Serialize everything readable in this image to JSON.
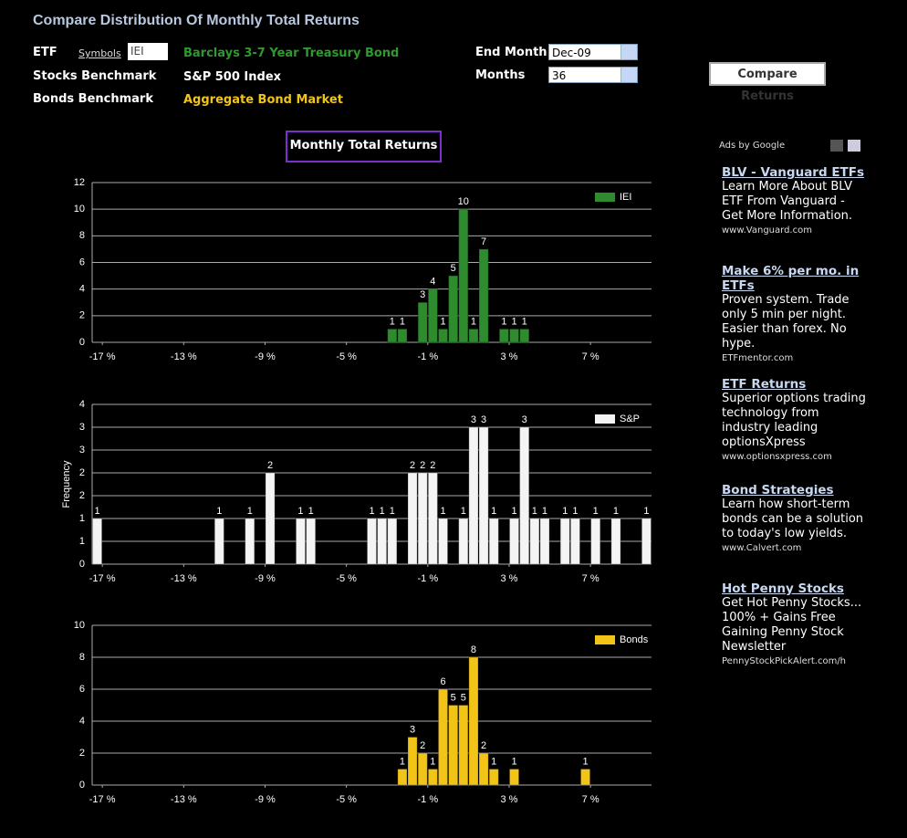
{
  "header": {
    "title": "Compare Distribution Of Monthly Total Returns"
  },
  "form": {
    "etf_label": "ETF",
    "symbols_link": "Symbols",
    "etf_value": "IEI",
    "etf_name": "Barclays 3-7 Year Treasury Bond",
    "stocks_label": "Stocks Benchmark",
    "stocks_name": "S&P 500 Index",
    "bonds_label": "Bonds Benchmark",
    "bonds_name": "Aggregate Bond Market",
    "end_month_label": "End Month",
    "end_month_value": "Dec-09",
    "months_label": "Months",
    "months_value": "36",
    "button": "Compare Returns"
  },
  "chart_header": "Monthly Total Returns",
  "ads": {
    "label": "Ads by Google",
    "items": [
      {
        "title": "BLV - Vanguard ETFs",
        "body": "Learn More About BLV ETF From Vanguard - Get More Information.",
        "url": "www.Vanguard.com"
      },
      {
        "title": "Make 6% per mo. in ETFs",
        "body": "Proven system. Trade only 5 min per night. Easier than forex. No hype.",
        "url": "ETFmentor.com"
      },
      {
        "title": "ETF Returns",
        "body": "Superior options trading technology from industry leading optionsXpress",
        "url": "www.optionsxpress.com"
      },
      {
        "title": "Bond Strategies",
        "body": "Learn how short-term bonds can be a solution to today's low yields.",
        "url": "www.Calvert.com"
      },
      {
        "title": "Hot Penny Stocks",
        "body": "Get Hot Penny Stocks... 100% + Gains Free Gaining Penny Stock Newsletter",
        "url": "PennyStockPickAlert.com/h"
      }
    ]
  },
  "chart_data": [
    {
      "type": "histogram",
      "legend": "upper right",
      "grid": true,
      "bins": [
        -3,
        -2.5,
        -2,
        -1.5,
        -1,
        -0.5,
        0,
        0.5,
        1,
        1.5,
        2,
        2.5,
        3,
        3.5,
        4
      ],
      "series": [
        {
          "name": "IEI",
          "color": "#2e8b2e",
          "values": [
            1,
            1,
            0,
            3,
            4,
            1,
            5,
            10,
            1,
            7,
            0,
            1,
            1,
            1
          ]
        }
      ],
      "xlim": [
        -17.5,
        10
      ],
      "xticks": [
        {
          "value": -17,
          "label": "-17 %"
        },
        {
          "value": -13,
          "label": "-13 %"
        },
        {
          "value": -9,
          "label": "-9 %"
        },
        {
          "value": -5,
          "label": "-5 %"
        },
        {
          "value": -1,
          "label": "-1 %"
        },
        {
          "value": 3,
          "label": "3 %"
        },
        {
          "value": 7,
          "label": "7 %"
        }
      ],
      "ylim": [
        0,
        12
      ],
      "yticks": [
        0,
        2,
        4,
        6,
        8,
        10,
        12
      ]
    },
    {
      "type": "histogram",
      "legend": "upper right",
      "grid": true,
      "y_label": "Frequency",
      "bins": [
        -17.5,
        -17,
        -16.5,
        -16,
        -15.5,
        -15,
        -14.5,
        -14,
        -13.5,
        -13,
        -12.5,
        -12,
        -11.5,
        -11,
        -10.5,
        -10,
        -9.5,
        -9,
        -8.5,
        -8,
        -7.5,
        -7,
        -6.5,
        -6,
        -5.5,
        -5,
        -4.5,
        -4,
        -3.5,
        -3,
        -2.5,
        -2,
        -1.5,
        -1,
        -0.5,
        0,
        0.5,
        1,
        1.5,
        2,
        2.5,
        3,
        3.5,
        4,
        4.5,
        5,
        5.5,
        6,
        6.5,
        7,
        7.5,
        8,
        8.5,
        9,
        9.5,
        10
      ],
      "series": [
        {
          "name": "S&P",
          "color": "#f4f4f4",
          "values": [
            1,
            0,
            0,
            0,
            0,
            0,
            0,
            0,
            0,
            0,
            0,
            0,
            1,
            0,
            0,
            1,
            0,
            2,
            0,
            0,
            1,
            1,
            0,
            0,
            0,
            0,
            0,
            1,
            1,
            1,
            0,
            2,
            2,
            2,
            1,
            0,
            1,
            3,
            3,
            1,
            0,
            1,
            3,
            1,
            1,
            0,
            1,
            1,
            0,
            1,
            0,
            1,
            0,
            0,
            1
          ]
        }
      ],
      "xlim": [
        -17.5,
        10
      ],
      "xticks": [
        {
          "value": -17,
          "label": "-17 %"
        },
        {
          "value": -13,
          "label": "-13 %"
        },
        {
          "value": -9,
          "label": "-9 %"
        },
        {
          "value": -5,
          "label": "-5 %"
        },
        {
          "value": -1,
          "label": "-1 %"
        },
        {
          "value": 3,
          "label": "3 %"
        },
        {
          "value": 7,
          "label": "7 %"
        }
      ],
      "ylim": [
        0,
        3.5
      ],
      "yticks": [
        0,
        {
          "value": 0.5,
          "label": "1"
        },
        1,
        {
          "value": 1.5,
          "label": "2"
        },
        2,
        {
          "value": 2.5,
          "label": "3"
        },
        3,
        {
          "value": 3.5,
          "label": "4"
        }
      ]
    },
    {
      "type": "histogram",
      "legend": "upper right",
      "grid": true,
      "bins": [
        -2.5,
        -2,
        -1.5,
        -1,
        -0.5,
        0,
        0.5,
        1,
        1.5,
        2,
        2.5,
        3,
        3.5,
        4,
        4.5,
        5,
        5.5,
        6,
        6.5,
        7
      ],
      "series": [
        {
          "name": "Bonds",
          "color": "#f2c418",
          "values": [
            1,
            3,
            2,
            1,
            6,
            5,
            5,
            8,
            2,
            1,
            0,
            1,
            0,
            0,
            0,
            0,
            0,
            0,
            1
          ]
        }
      ],
      "xlim": [
        -17.5,
        10
      ],
      "xticks": [
        {
          "value": -17,
          "label": "-17 %"
        },
        {
          "value": -13,
          "label": "-13 %"
        },
        {
          "value": -9,
          "label": "-9 %"
        },
        {
          "value": -5,
          "label": "-5 %"
        },
        {
          "value": -1,
          "label": "-1 %"
        },
        {
          "value": 3,
          "label": "3 %"
        },
        {
          "value": 7,
          "label": "7 %"
        }
      ],
      "ylim": [
        0,
        10
      ],
      "yticks": [
        0,
        2,
        4,
        6,
        8,
        10
      ]
    }
  ]
}
